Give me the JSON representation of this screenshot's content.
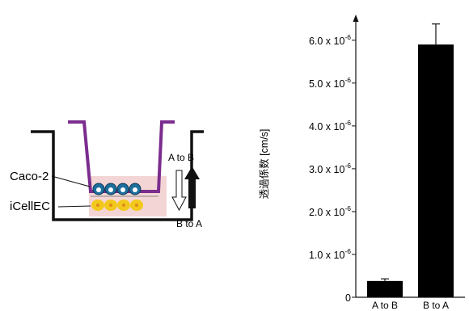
{
  "diagram": {
    "cell_labels": [
      "Caco-2",
      "iCellEC"
    ],
    "direction_labels": [
      "A to B",
      "B to A"
    ],
    "colors": {
      "insert": "#7b2d8e",
      "medium": "#f4d5d5",
      "caco2": "#1d6f9e",
      "icellec": "#f2c81c",
      "icellec_dot": "#e08a1a",
      "outline": "#111111"
    }
  },
  "chart_data": {
    "type": "bar",
    "categories": [
      "A to B",
      "B to A"
    ],
    "values": [
      3.8e-07,
      5.9e-06
    ],
    "errors": [
      5e-08,
      4.8e-07
    ],
    "ylabel": "透過係数 [cm/s]",
    "ylim": [
      0,
      6.6e-06
    ],
    "yticks": [
      {
        "value": 0,
        "label": "0",
        "exp": ""
      },
      {
        "value": 1e-06,
        "label": "1.0 x 10",
        "exp": "-6"
      },
      {
        "value": 2e-06,
        "label": "2.0 x 10",
        "exp": "-6"
      },
      {
        "value": 3e-06,
        "label": "3.0 x 10",
        "exp": "-6"
      },
      {
        "value": 4e-06,
        "label": "4.0 x 10",
        "exp": "-6"
      },
      {
        "value": 5e-06,
        "label": "5.0 x 10",
        "exp": "-6"
      },
      {
        "value": 6e-06,
        "label": "6.0 x 10",
        "exp": "-6"
      }
    ],
    "bar_color": "#000000",
    "grid": false
  }
}
